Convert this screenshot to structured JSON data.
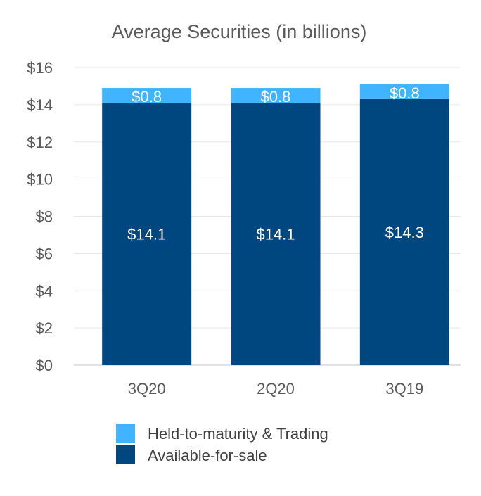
{
  "chart_data": {
    "type": "bar",
    "stacked": true,
    "title": "Average Securities (in billions)",
    "xlabel": "",
    "ylabel": "",
    "categories": [
      "3Q20",
      "2Q20",
      "3Q19"
    ],
    "series": [
      {
        "name": "Available-for-sale",
        "values": [
          14.1,
          14.1,
          14.3
        ],
        "labels": [
          "$14.1",
          "$14.1",
          "$14.3"
        ],
        "color": "#00467f"
      },
      {
        "name": "Held-to-maturity & Trading",
        "values": [
          0.8,
          0.8,
          0.8
        ],
        "labels": [
          "$0.8",
          "$0.8",
          "$0.8"
        ],
        "color": "#40b4ff"
      }
    ],
    "ylim": [
      0,
      16
    ],
    "yticks": [
      0,
      2,
      4,
      6,
      8,
      10,
      12,
      14,
      16
    ],
    "ytick_labels": [
      "$0",
      "$2",
      "$4",
      "$6",
      "$8",
      "$10",
      "$12",
      "$14",
      "$16"
    ],
    "grid": true,
    "legend": [
      {
        "label": "Held-to-maturity & Trading",
        "color": "#40b4ff"
      },
      {
        "label": "Available-for-sale",
        "color": "#00467f"
      }
    ],
    "legend_position": "bottom"
  }
}
